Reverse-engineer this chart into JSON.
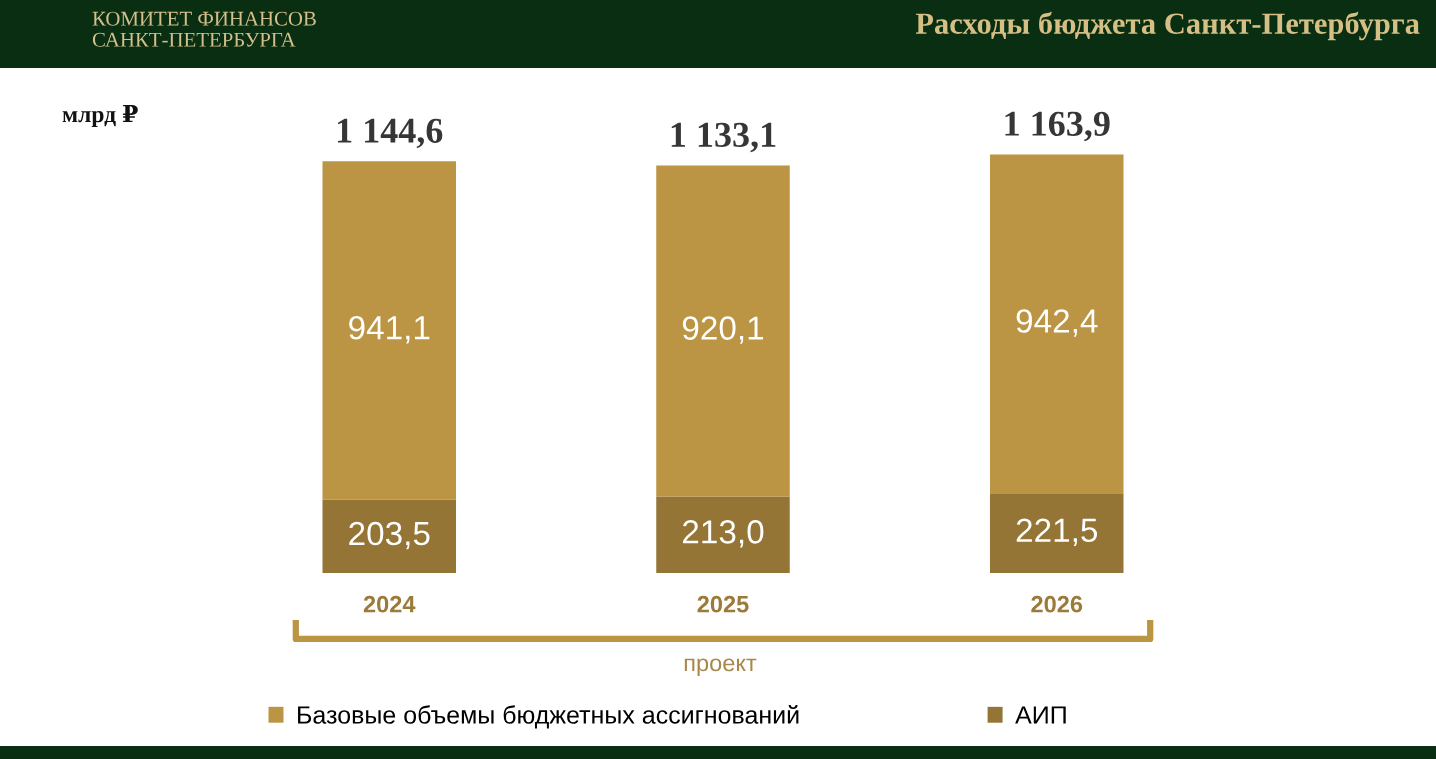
{
  "chart_data": {
    "type": "bar",
    "title": "Расходы бюджета Санкт-Петербурга",
    "ylabel": "млрд ₽",
    "categories": [
      "2024",
      "2025",
      "2026"
    ],
    "stacked": true,
    "series": [
      {
        "name": "АИП",
        "color": "#957535",
        "values": [
          203.5,
          213.0,
          221.5
        ],
        "value_labels": [
          "203,5",
          "213,0",
          "221,5"
        ]
      },
      {
        "name": "Базовые объемы бюджетных ассигнований",
        "color": "#bb9444",
        "values": [
          941.1,
          920.1,
          942.4
        ],
        "value_labels": [
          "941,1",
          "920,1",
          "942,4"
        ]
      }
    ],
    "totals": [
      "1 144,6",
      "1 133,1",
      "1 163,9"
    ],
    "legend": "bottom",
    "tick_labels": "x",
    "annotations": [
      "КОМИТЕТ ФИНАНСОВ\nСАНКТ-ПЕТЕРБУРГА",
      "проект"
    ]
  }
}
